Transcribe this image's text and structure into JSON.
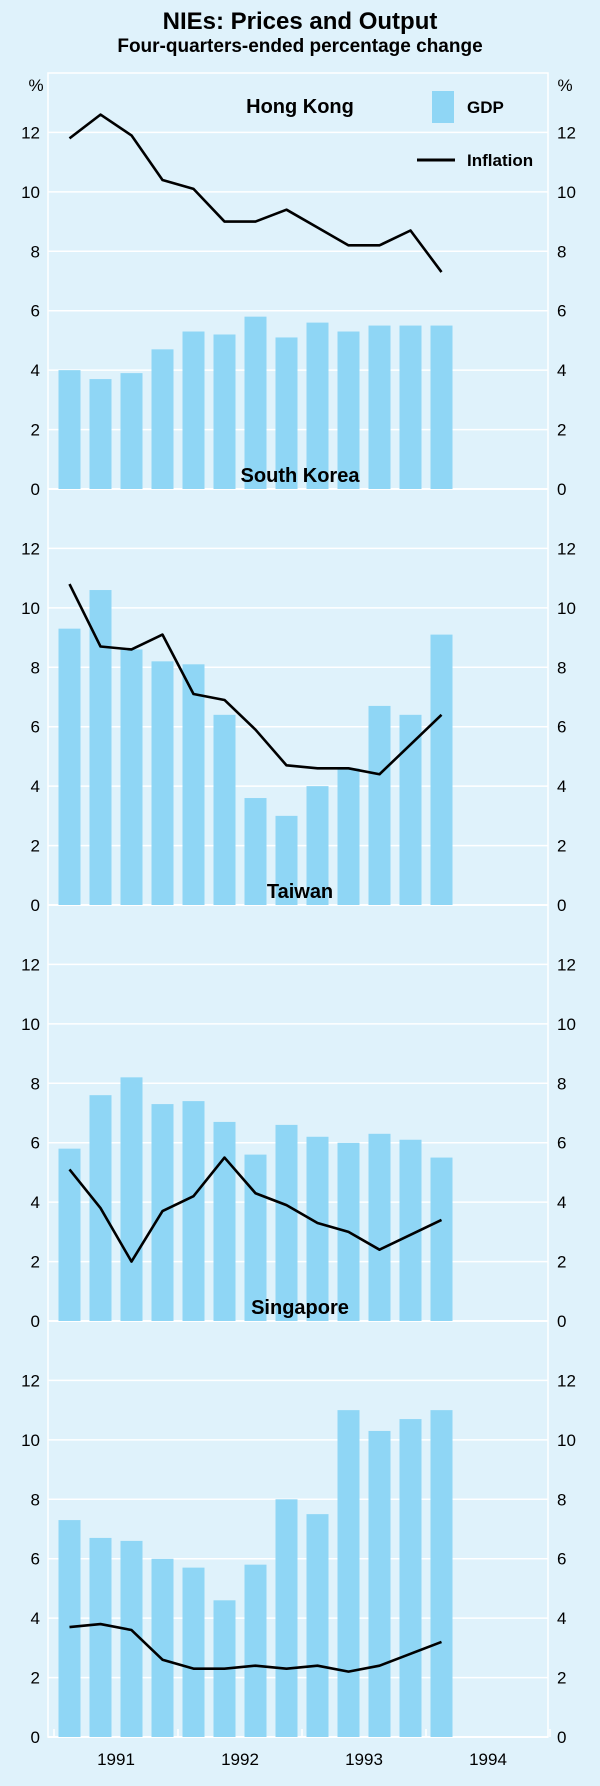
{
  "title": "NIEs: Prices and Output",
  "subtitle": "Four-quarters-ended percentage change",
  "colors": {
    "background": "#dff2fb",
    "bar": "#8fd6f5",
    "line": "#000000",
    "grid": "#ffffff"
  },
  "legend": [
    {
      "label": "GDP",
      "kind": "bar"
    },
    {
      "label": "Inflation",
      "kind": "line"
    }
  ],
  "chart_data": {
    "type": "bar+line",
    "unit_label": "%",
    "x_tick_labels": [
      "1991",
      "1992",
      "1993",
      "1994"
    ],
    "x_period": {
      "start_year": 1991,
      "quarters_per_year": 4
    },
    "ylim": [
      0,
      14
    ],
    "yticks": [
      0,
      2,
      4,
      6,
      8,
      10,
      12
    ],
    "panels": [
      {
        "name": "Hong Kong",
        "gdp": [
          4.0,
          3.7,
          3.9,
          4.7,
          5.3,
          5.2,
          5.8,
          5.1,
          5.6,
          5.3,
          5.5,
          5.5,
          5.5
        ],
        "inflation": [
          11.8,
          12.6,
          11.9,
          10.4,
          10.1,
          9.0,
          9.0,
          9.4,
          8.8,
          8.2,
          8.2,
          8.7,
          7.3
        ]
      },
      {
        "name": "South Korea",
        "gdp": [
          9.3,
          10.6,
          8.6,
          8.2,
          8.1,
          6.4,
          3.6,
          3.0,
          4.0,
          4.6,
          6.7,
          6.4,
          9.1
        ],
        "inflation": [
          10.8,
          8.7,
          8.6,
          9.1,
          7.1,
          6.9,
          5.9,
          4.7,
          4.6,
          4.6,
          4.4,
          5.4,
          6.4
        ]
      },
      {
        "name": "Taiwan",
        "gdp": [
          5.8,
          7.6,
          8.2,
          7.3,
          7.4,
          6.7,
          5.6,
          6.6,
          6.2,
          6.0,
          6.3,
          6.1,
          5.5
        ],
        "inflation": [
          5.1,
          3.8,
          2.0,
          3.7,
          4.2,
          5.5,
          4.3,
          3.9,
          3.3,
          3.0,
          2.4,
          2.9,
          3.4
        ]
      },
      {
        "name": "Singapore",
        "gdp": [
          7.3,
          6.7,
          6.6,
          6.0,
          5.7,
          4.6,
          5.8,
          8.0,
          7.5,
          11.0,
          10.3,
          10.7,
          11.0
        ],
        "inflation": [
          3.7,
          3.8,
          3.6,
          2.6,
          2.3,
          2.3,
          2.4,
          2.3,
          2.4,
          2.2,
          2.4,
          2.8,
          3.2
        ]
      }
    ]
  }
}
